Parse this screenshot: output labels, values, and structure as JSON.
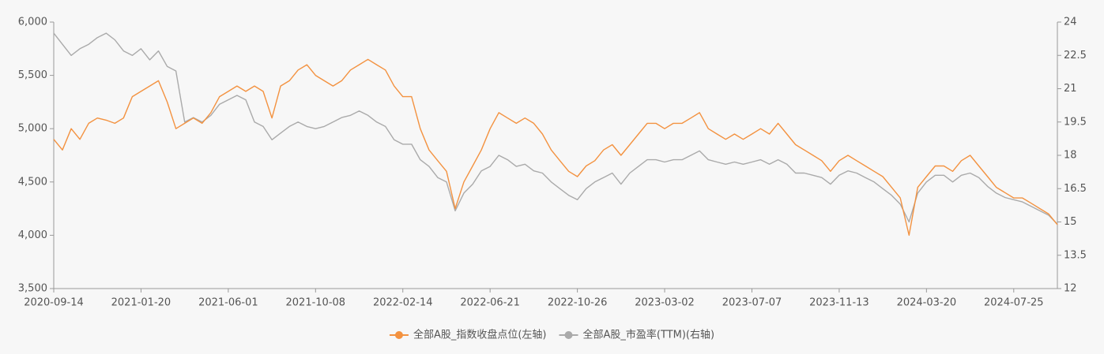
{
  "chart_data": {
    "type": "line",
    "categories": [
      "2020-09-14",
      null,
      null,
      null,
      null,
      null,
      null,
      null,
      null,
      null,
      "2021-01-20",
      null,
      null,
      null,
      null,
      null,
      null,
      null,
      null,
      null,
      "2021-06-01",
      null,
      null,
      null,
      null,
      null,
      null,
      null,
      null,
      null,
      "2021-10-08",
      null,
      null,
      null,
      null,
      null,
      null,
      null,
      null,
      null,
      "2022-02-14",
      null,
      null,
      null,
      null,
      null,
      null,
      null,
      null,
      null,
      "2022-06-21",
      null,
      null,
      null,
      null,
      null,
      null,
      null,
      null,
      null,
      "2022-10-26",
      null,
      null,
      null,
      null,
      null,
      null,
      null,
      null,
      null,
      "2023-03-02",
      null,
      null,
      null,
      null,
      null,
      null,
      null,
      null,
      null,
      "2023-07-07",
      null,
      null,
      null,
      null,
      null,
      null,
      null,
      null,
      null,
      "2023-11-13",
      null,
      null,
      null,
      null,
      null,
      null,
      null,
      null,
      null,
      "2024-03-20",
      null,
      null,
      null,
      null,
      null,
      null,
      null,
      null,
      null,
      "2024-07-25",
      null,
      null,
      null,
      null,
      null
    ],
    "series": [
      {
        "name": "全部A股_指数收盘点位(左轴)",
        "color": "#f39240",
        "values": [
          4900,
          4800,
          5000,
          4900,
          5050,
          5100,
          5080,
          5050,
          5100,
          5300,
          5350,
          5400,
          5450,
          5250,
          5000,
          5050,
          5100,
          5050,
          5150,
          5300,
          5350,
          5400,
          5350,
          5400,
          5350,
          5100,
          5400,
          5450,
          5550,
          5600,
          5500,
          5450,
          5400,
          5450,
          5550,
          5600,
          5650,
          5600,
          5550,
          5400,
          5300,
          5300,
          5000,
          4800,
          4700,
          4600,
          4250,
          4500,
          4650,
          4800,
          5000,
          5150,
          5100,
          5050,
          5100,
          5050,
          4950,
          4800,
          4700,
          4600,
          4550,
          4650,
          4700,
          4800,
          4850,
          4750,
          4850,
          4950,
          5050,
          5050,
          5000,
          5050,
          5050,
          5100,
          5150,
          5000,
          4950,
          4900,
          4950,
          4900,
          4950,
          5000,
          4950,
          5050,
          4950,
          4850,
          4800,
          4750,
          4700,
          4600,
          4700,
          4750,
          4700,
          4650,
          4600,
          4550,
          4450,
          4350,
          4000,
          4450,
          4550,
          4650,
          4650,
          4600,
          4700,
          4750,
          4650,
          4550,
          4450,
          4400,
          4350,
          4350,
          4300,
          4250,
          4200,
          4100
        ]
      },
      {
        "name": "全部A股_市盈率(TTM)(右轴)",
        "color": "#aaaaaa",
        "axis": "y2",
        "values": [
          23.5,
          23,
          22.5,
          22.8,
          23,
          23.3,
          23.5,
          23.2,
          22.7,
          22.5,
          22.8,
          22.3,
          22.7,
          22,
          21.8,
          19.5,
          19.7,
          19.5,
          19.8,
          20.3,
          20.5,
          20.7,
          20.5,
          19.5,
          19.3,
          18.7,
          19,
          19.3,
          19.5,
          19.3,
          19.2,
          19.3,
          19.5,
          19.7,
          19.8,
          20,
          19.8,
          19.5,
          19.3,
          18.7,
          18.5,
          18.5,
          17.8,
          17.5,
          17,
          16.8,
          15.5,
          16.3,
          16.7,
          17.3,
          17.5,
          18,
          17.8,
          17.5,
          17.6,
          17.3,
          17.2,
          16.8,
          16.5,
          16.2,
          16,
          16.5,
          16.8,
          17,
          17.2,
          16.7,
          17.2,
          17.5,
          17.8,
          17.8,
          17.7,
          17.8,
          17.8,
          18,
          18.2,
          17.8,
          17.7,
          17.6,
          17.7,
          17.6,
          17.7,
          17.8,
          17.6,
          17.8,
          17.6,
          17.2,
          17.2,
          17.1,
          17,
          16.7,
          17.1,
          17.3,
          17.2,
          17,
          16.8,
          16.5,
          16.2,
          15.8,
          15,
          16.3,
          16.8,
          17.1,
          17.1,
          16.8,
          17.1,
          17.2,
          17,
          16.6,
          16.3,
          16.1,
          16,
          15.9,
          15.7,
          15.5,
          15.3,
          14.9
        ]
      }
    ],
    "ylim": [
      3500,
      6000
    ],
    "yticks": [
      {
        "value": 3500,
        "label": "3,500"
      },
      {
        "value": 4000,
        "label": "4,000"
      },
      {
        "value": 4500,
        "label": "4,500"
      },
      {
        "value": 5000,
        "label": "5,000"
      },
      {
        "value": 5500,
        "label": "5,500"
      },
      {
        "value": 6000,
        "label": "6,000"
      }
    ],
    "y2lim": [
      12,
      24
    ],
    "y2ticks": [
      12,
      13.5,
      15,
      16.5,
      18,
      19.5,
      21,
      22.5,
      24
    ],
    "legend": "bottom"
  }
}
